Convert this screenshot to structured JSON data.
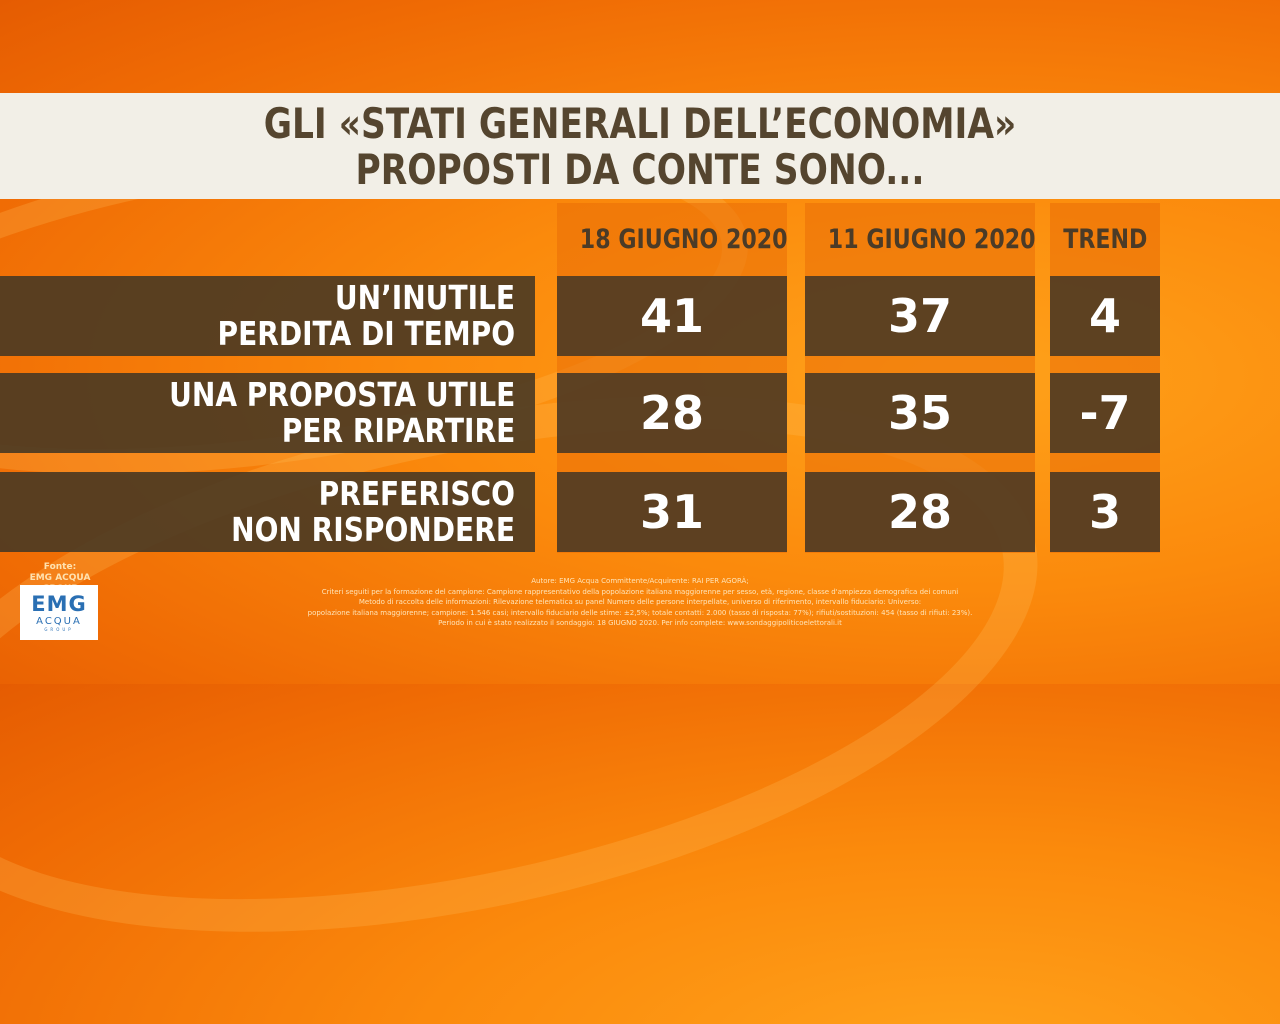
{
  "title": {
    "line1": "GLI «STATI GENERALI DELL’ECONOMIA»",
    "line2": "PROPOSTI DA CONTE SONO..."
  },
  "chart_data": {
    "type": "table",
    "columns": [
      "18 GIUGNO 2020",
      "11 GIUGNO 2020",
      "TREND"
    ],
    "rows": [
      {
        "label_lines": [
          "UN’INUTILE",
          "PERDITA DI TEMPO"
        ],
        "values": [
          "41",
          "37",
          "4"
        ]
      },
      {
        "label_lines": [
          "UNA PROPOSTA UTILE",
          "PER RIPARTIRE"
        ],
        "values": [
          "28",
          "35",
          "-7"
        ]
      },
      {
        "label_lines": [
          "PREFERISCO",
          "NON RISPONDERE"
        ],
        "values": [
          "31",
          "28",
          "3"
        ]
      }
    ]
  },
  "source": {
    "label_line1": "Fonte:",
    "label_line2": "EMG ACQUA GROUP",
    "logo_main": "EMG",
    "logo_sub": "ACQUA",
    "logo_tiny": "GROUP"
  },
  "footnote": [
    "Autore: EMG Acqua Committente/Acquirente: RAI PER AGORÀ;",
    "Criteri seguiti per la formazione del campione: Campione rappresentativo della popolazione italiana maggiorenne per sesso, età, regione, classe d'ampiezza demografica dei comuni",
    "Metodo di raccolta delle informazioni: Rilevazione telematica su panel Numero delle persone interpellate, universo di riferimento, intervallo fiduciario: Universo:",
    "popolazione italiana maggiorenne; campione: 1.546 casi; intervallo fiduciario delle stime: ±2,5%; totale contatti: 2.000 (tasso di risposta: 77%); rifiuti/sostituzioni: 454 (tasso di rifiuti: 23%).",
    "Periodo in cui è stato realizzato il sondaggio: 18 GIUGNO 2020. Per info complete: www.sondaggipoliticoelettorali.it"
  ]
}
